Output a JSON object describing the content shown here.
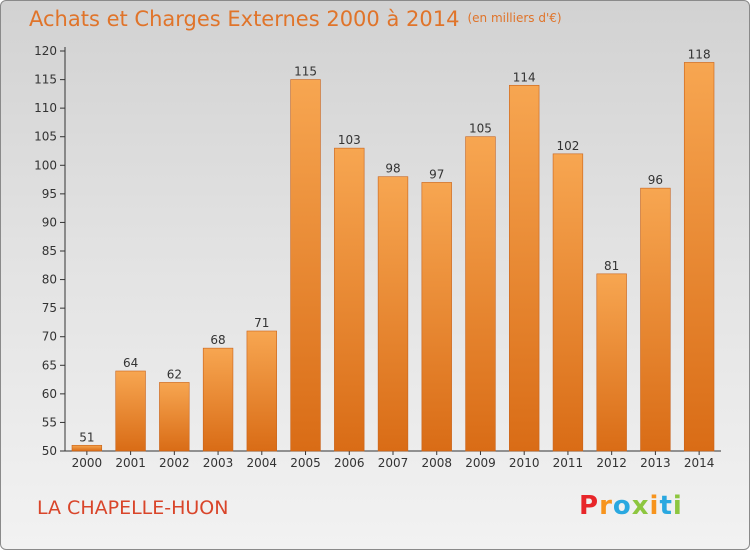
{
  "title": "Achats et Charges Externes 2000 à 2014",
  "subtitle": "(en milliers d'€)",
  "place": "LA CHAPELLE-HUON",
  "logo": {
    "text": "Proxiti",
    "letters": [
      {
        "ch": "P",
        "color": "#e8262a"
      },
      {
        "ch": "r",
        "color": "#f7941d"
      },
      {
        "ch": "o",
        "color": "#2aa8e0"
      },
      {
        "ch": "x",
        "color": "#8dc63f"
      },
      {
        "ch": "i",
        "color": "#f7941d"
      },
      {
        "ch": "t",
        "color": "#2aa8e0"
      },
      {
        "ch": "i",
        "color": "#8dc63f"
      }
    ]
  },
  "colors": {
    "bar_light": "#f7a651",
    "bar_dark": "#d96c16",
    "title": "#e0742a",
    "place": "#d9452a"
  },
  "chart_data": {
    "type": "bar",
    "categories": [
      "2000",
      "2001",
      "2002",
      "2003",
      "2004",
      "2005",
      "2006",
      "2007",
      "2008",
      "2009",
      "2010",
      "2011",
      "2012",
      "2013",
      "2014"
    ],
    "values": [
      51,
      64,
      62,
      68,
      71,
      115,
      103,
      98,
      97,
      105,
      114,
      102,
      81,
      96,
      118
    ],
    "ylim": [
      50,
      120
    ],
    "yticks": [
      50,
      55,
      60,
      65,
      70,
      75,
      80,
      85,
      90,
      95,
      100,
      105,
      110,
      115,
      120
    ],
    "grid": false
  }
}
